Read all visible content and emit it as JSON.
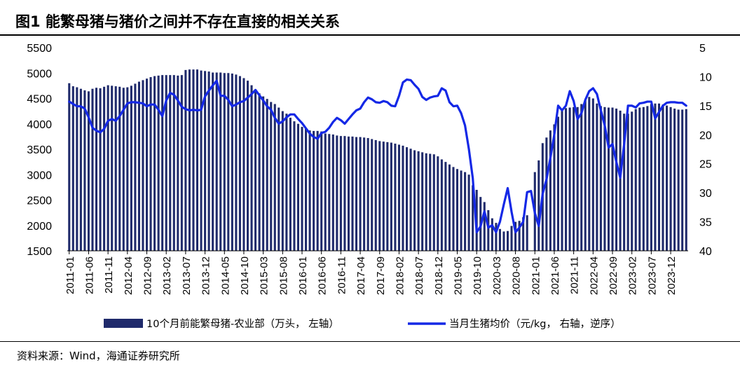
{
  "title": "图1  能繁母猪与猪价之间并不存在直接的相关关系",
  "source": "资料来源：Wind，海通证券研究所",
  "colors": {
    "bar": "#1f2a6b",
    "line": "#1428e6"
  },
  "chart_data": {
    "type": "bar+line",
    "x": [
      "2011-01",
      "2011-02",
      "2011-03",
      "2011-04",
      "2011-05",
      "2011-06",
      "2011-07",
      "2011-08",
      "2011-09",
      "2011-10",
      "2011-11",
      "2011-12",
      "2012-01",
      "2012-02",
      "2012-03",
      "2012-04",
      "2012-05",
      "2012-06",
      "2012-07",
      "2012-08",
      "2012-09",
      "2012-10",
      "2012-11",
      "2012-12",
      "2013-01",
      "2013-02",
      "2013-03",
      "2013-04",
      "2013-05",
      "2013-06",
      "2013-07",
      "2013-08",
      "2013-09",
      "2013-10",
      "2013-11",
      "2013-12",
      "2014-01",
      "2014-02",
      "2014-03",
      "2014-04",
      "2014-05",
      "2014-06",
      "2014-07",
      "2014-08",
      "2014-09",
      "2014-10",
      "2014-11",
      "2014-12",
      "2015-01",
      "2015-02",
      "2015-03",
      "2015-04",
      "2015-05",
      "2015-06",
      "2015-07",
      "2015-08",
      "2015-09",
      "2015-10",
      "2015-11",
      "2015-12",
      "2016-01",
      "2016-02",
      "2016-03",
      "2016-04",
      "2016-05",
      "2016-06",
      "2016-07",
      "2016-08",
      "2016-09",
      "2016-10",
      "2016-11",
      "2016-12",
      "2017-01",
      "2017-02",
      "2017-03",
      "2017-04",
      "2017-05",
      "2017-06",
      "2017-07",
      "2017-08",
      "2017-09",
      "2017-10",
      "2017-11",
      "2017-12",
      "2018-01",
      "2018-02",
      "2018-03",
      "2018-04",
      "2018-05",
      "2018-06",
      "2018-07",
      "2018-08",
      "2018-09",
      "2018-10",
      "2018-11",
      "2018-12",
      "2019-01",
      "2019-02",
      "2019-03",
      "2019-04",
      "2019-05",
      "2019-06",
      "2019-07",
      "2019-08",
      "2019-09",
      "2019-10",
      "2019-11",
      "2019-12",
      "2020-01",
      "2020-02",
      "2020-03",
      "2020-04",
      "2020-05",
      "2020-06",
      "2020-07",
      "2020-08",
      "2020-09",
      "2020-10",
      "2020-11",
      "2020-12",
      "2021-01",
      "2021-02",
      "2021-03",
      "2021-04",
      "2021-05",
      "2021-06",
      "2021-07",
      "2021-08",
      "2021-09",
      "2021-10",
      "2021-11",
      "2021-12",
      "2022-01",
      "2022-02",
      "2022-03",
      "2022-04",
      "2022-05",
      "2022-06",
      "2022-07",
      "2022-08",
      "2022-09",
      "2022-10",
      "2022-11",
      "2022-12",
      "2023-01",
      "2023-02",
      "2023-03",
      "2023-04",
      "2023-05",
      "2023-06",
      "2023-07",
      "2023-08",
      "2023-09",
      "2023-10",
      "2023-11",
      "2023-12",
      "2024-01",
      "2024-02",
      "2024-03",
      "2024-04"
    ],
    "tick_labels": [
      "2011-01",
      "2011-06",
      "2011-11",
      "2012-04",
      "2012-09",
      "2013-02",
      "2013-07",
      "2013-12",
      "2014-05",
      "2014-10",
      "2015-03",
      "2015-08",
      "2016-01",
      "2016-06",
      "2016-11",
      "2017-04",
      "2017-09",
      "2018-02",
      "2018-07",
      "2018-12",
      "2019-05",
      "2019-10",
      "2020-03",
      "2020-08",
      "2021-01",
      "2021-06",
      "2021-11",
      "2022-04",
      "2022-09",
      "2023-02",
      "2023-07",
      "2023-12"
    ],
    "series": [
      {
        "name": "10个月前能繁母猪-农业部（万头， 左轴）",
        "type": "bar",
        "axis": "left",
        "values": [
          4800,
          4740,
          4720,
          4690,
          4660,
          4640,
          4690,
          4710,
          4700,
          4730,
          4760,
          4750,
          4740,
          4730,
          4710,
          4720,
          4750,
          4790,
          4830,
          4860,
          4890,
          4920,
          4940,
          4950,
          4960,
          4960,
          4960,
          4960,
          4950,
          4960,
          5060,
          5070,
          5070,
          5070,
          5050,
          5040,
          5030,
          5010,
          5010,
          5010,
          5000,
          5000,
          4990,
          4970,
          4940,
          4900,
          4850,
          4760,
          4680,
          4600,
          4540,
          4490,
          4430,
          4390,
          4320,
          4250,
          4200,
          4120,
          4050,
          4000,
          3940,
          3900,
          3870,
          3860,
          3860,
          3850,
          3810,
          3800,
          3790,
          3770,
          3760,
          3760,
          3750,
          3750,
          3740,
          3740,
          3730,
          3720,
          3700,
          3680,
          3660,
          3650,
          3640,
          3630,
          3610,
          3590,
          3570,
          3540,
          3510,
          3480,
          3460,
          3440,
          3420,
          3410,
          3400,
          3360,
          3300,
          3250,
          3200,
          3150,
          3110,
          3080,
          3050,
          3000,
          2790,
          2700,
          2560,
          2460,
          2300,
          2140,
          2050,
          1930,
          1880,
          1890,
          1990,
          2070,
          2090,
          2160,
          2200,
          1480,
          3050,
          3280,
          3620,
          3730,
          3870,
          3990,
          4140,
          4270,
          4310,
          4320,
          4330,
          4330,
          4390,
          4470,
          4530,
          4500,
          4400,
          4350,
          4330,
          4320,
          4320,
          4300,
          4260,
          4200,
          4200,
          4240,
          4290,
          4320,
          4330,
          4350,
          4390,
          4400,
          4400,
          4380,
          4360,
          4330,
          4300,
          4280,
          4280,
          4290
        ],
        "ylim": [
          1500,
          5500
        ]
      },
      {
        "name": "当月生猪均价（元/kg， 右轴，逆序）",
        "type": "line",
        "axis": "right",
        "inverted": true,
        "values": [
          14.3,
          14.7,
          15.1,
          15.1,
          15.5,
          17.0,
          18.8,
          19.3,
          19.6,
          19.0,
          17.6,
          17.3,
          17.6,
          16.8,
          15.7,
          14.6,
          14.4,
          14.4,
          14.5,
          14.6,
          15.1,
          14.8,
          14.8,
          15.7,
          16.8,
          14.1,
          12.8,
          13.1,
          14.1,
          15.2,
          15.6,
          15.8,
          15.7,
          15.8,
          15.7,
          13.4,
          12.4,
          11.5,
          10.7,
          13.3,
          13.3,
          14.0,
          15.1,
          14.8,
          14.4,
          14.2,
          13.6,
          13.0,
          12.3,
          13.2,
          14.1,
          15.1,
          15.7,
          17.1,
          18.1,
          17.7,
          17.0,
          16.5,
          16.5,
          17.3,
          18.0,
          18.9,
          19.8,
          20.4,
          20.7,
          19.7,
          19.5,
          18.8,
          17.8,
          17.1,
          17.5,
          18.1,
          17.3,
          16.5,
          15.8,
          15.5,
          14.4,
          13.6,
          13.9,
          14.4,
          14.5,
          14.2,
          14.4,
          15.0,
          15.1,
          13.3,
          11.0,
          10.5,
          10.6,
          11.4,
          12.1,
          13.5,
          14.0,
          13.6,
          13.4,
          13.3,
          12.0,
          12.4,
          14.4,
          15.1,
          15.0,
          16.3,
          18.4,
          22.5,
          27.5,
          36.8,
          35.8,
          33.2,
          36.0,
          35.6,
          36.8,
          35.0,
          32.0,
          29.2,
          33.3,
          36.8,
          36.0,
          35.0,
          29.9,
          29.7,
          33.5,
          35.7,
          30.2,
          27.7,
          24.0,
          20.0,
          15.0,
          15.8,
          15.0,
          12.5,
          14.2,
          17.3,
          16.3,
          14.0,
          12.5,
          12.0,
          13.0,
          15.8,
          18.4,
          22.2,
          21.6,
          24.7,
          27.4,
          21.7,
          15.0,
          15.0,
          15.3,
          14.6,
          14.5,
          14.3,
          14.3,
          17.2,
          16.1,
          15.0,
          14.5,
          14.4,
          14.4,
          14.5,
          14.5,
          15.0
        ],
        "ylim": [
          5,
          40
        ]
      }
    ],
    "left_axis": {
      "ticks": [
        "5500",
        "5000",
        "4500",
        "4000",
        "3500",
        "3000",
        "2500",
        "2000",
        "1500"
      ]
    },
    "right_axis": {
      "ticks": [
        "5",
        "10",
        "15",
        "20",
        "25",
        "30",
        "35",
        "40"
      ]
    },
    "legend": {
      "position": "bottom"
    }
  }
}
